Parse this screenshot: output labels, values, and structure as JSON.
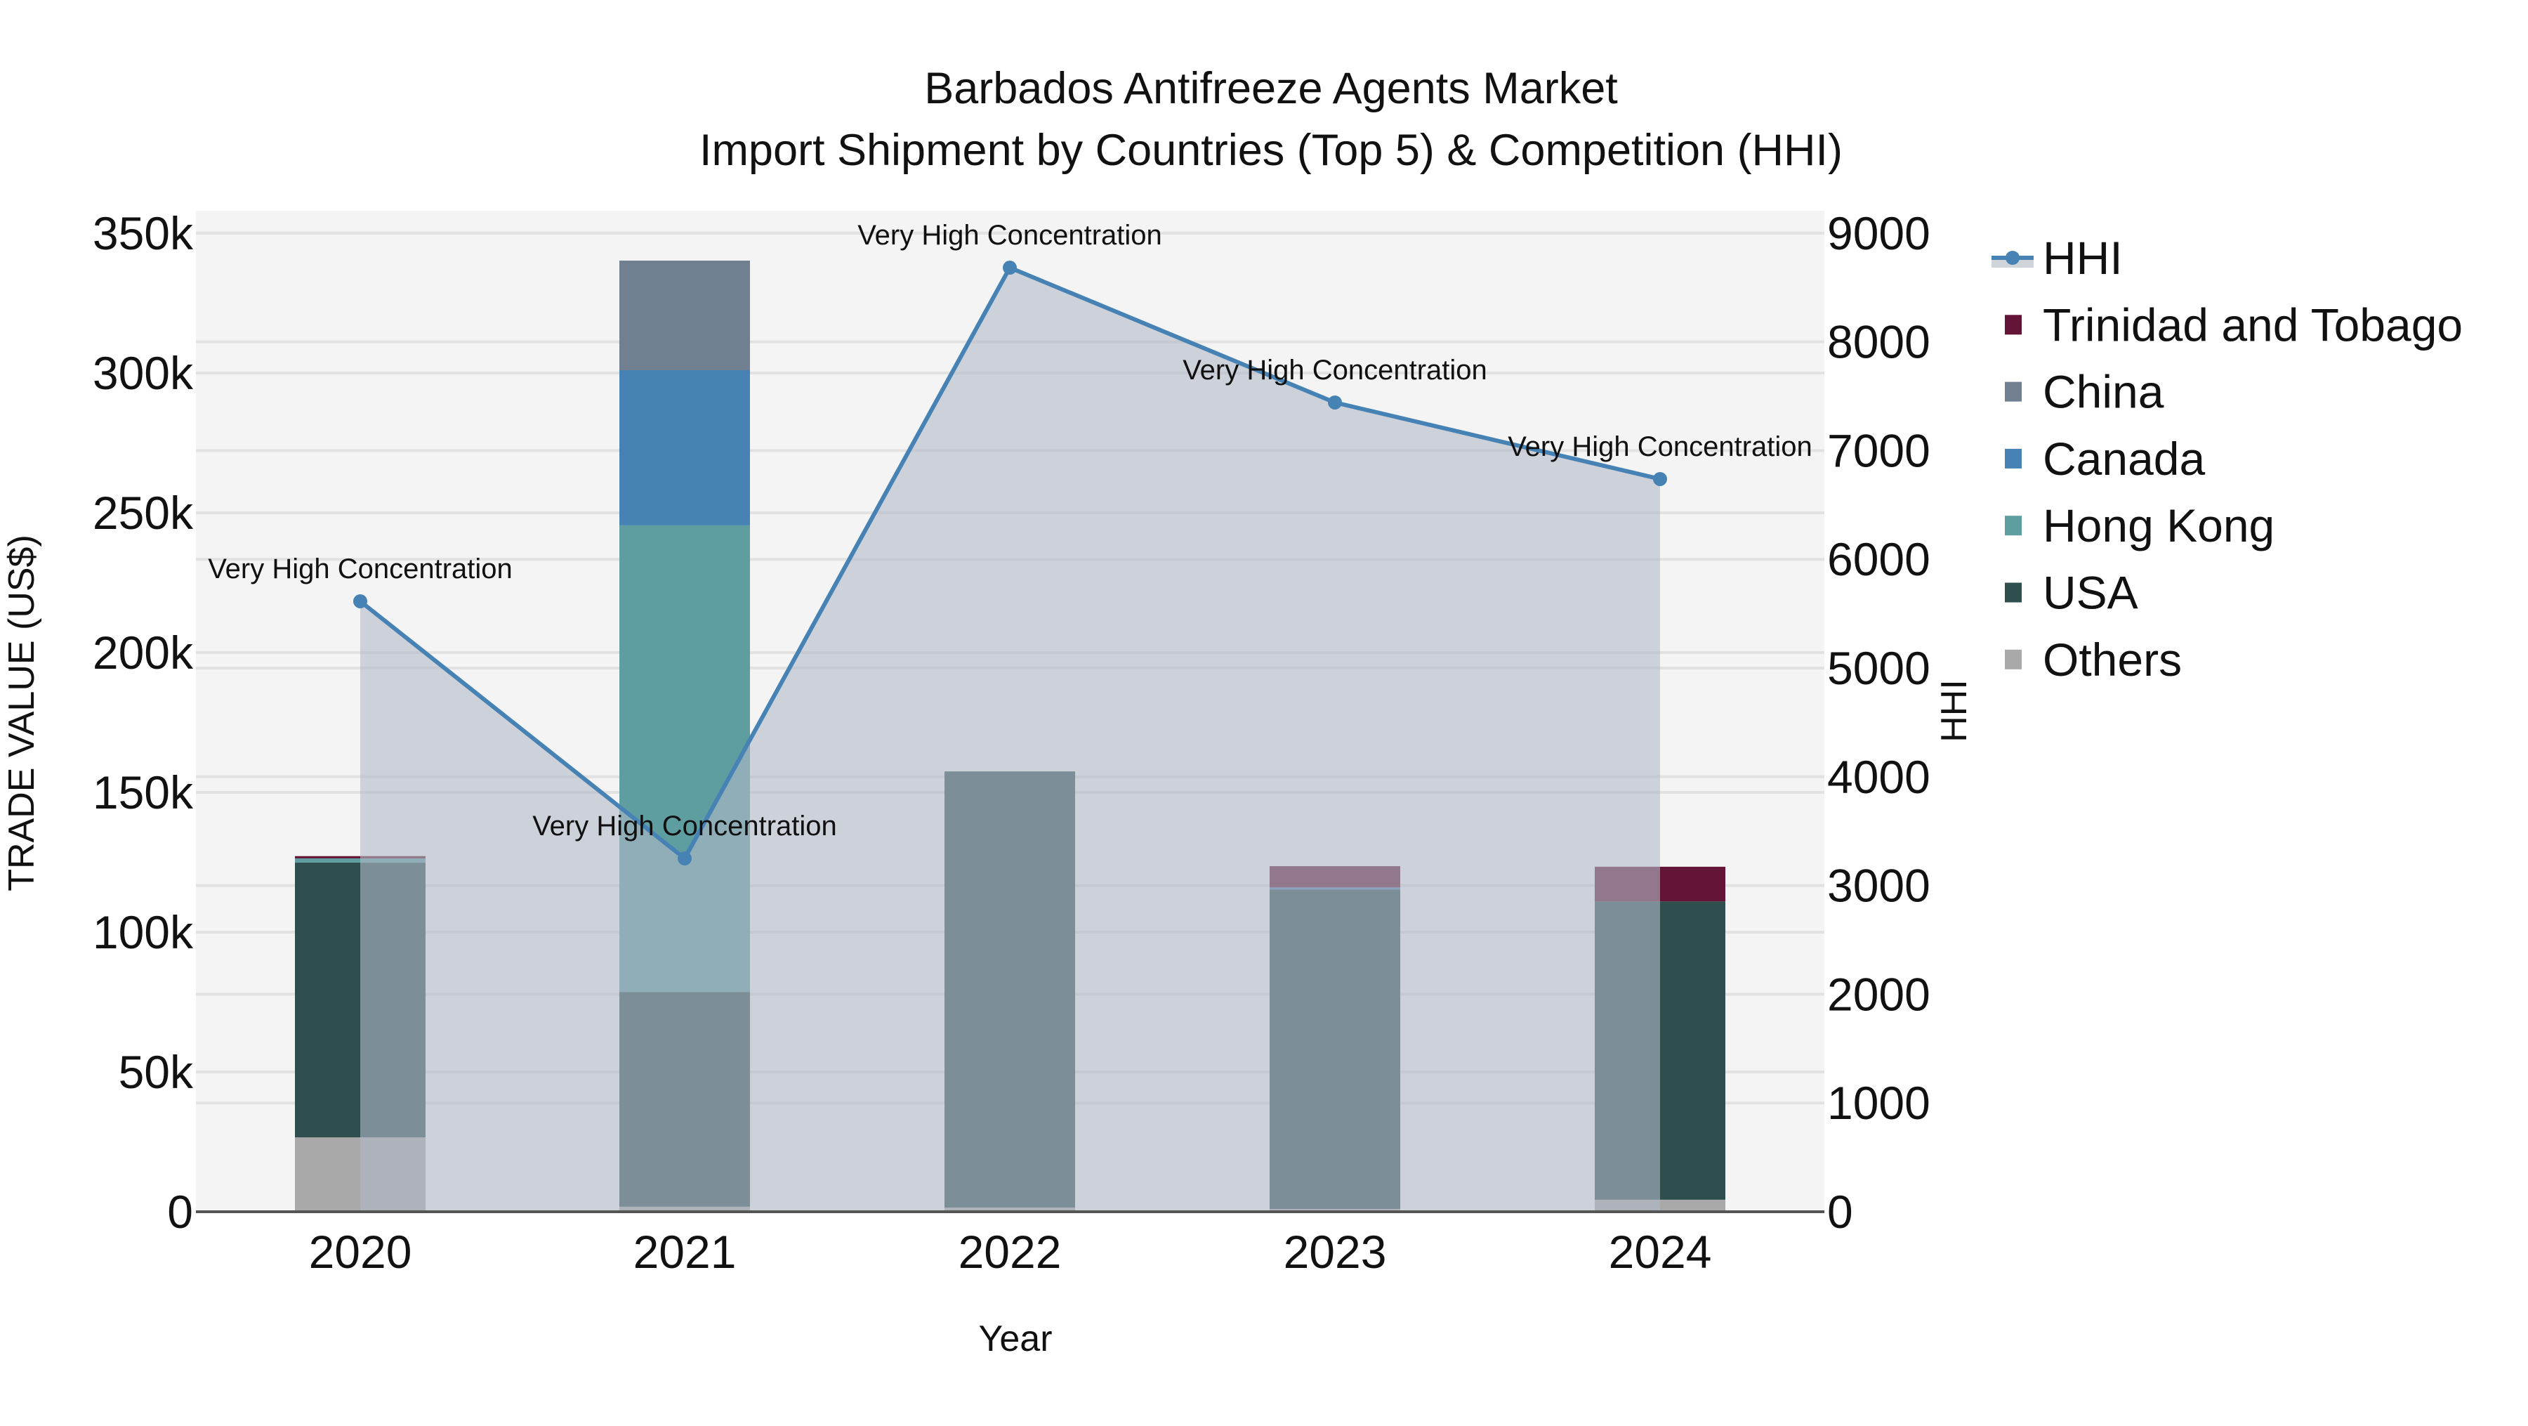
{
  "title": {
    "line1": "Barbados Antifreeze Agents Market",
    "line2": "Import Shipment by Countries (Top 5) & Competition (HHI)"
  },
  "axes": {
    "x_title": "Year",
    "y_left_title": "TRADE VALUE (US$)",
    "y_right_title": "HHI",
    "y_left_ticks": [
      "0",
      "50k",
      "100k",
      "150k",
      "200k",
      "250k",
      "300k",
      "350k"
    ],
    "y_right_ticks": [
      "0",
      "1000",
      "2000",
      "3000",
      "4000",
      "5000",
      "6000",
      "7000",
      "8000",
      "9000"
    ]
  },
  "legend": {
    "items": [
      {
        "label": "HHI",
        "type": "line",
        "color": "#4682b4"
      },
      {
        "label": "Trinidad and Tobago",
        "type": "box",
        "color": "#641436"
      },
      {
        "label": "China",
        "type": "box",
        "color": "#708090"
      },
      {
        "label": "Canada",
        "type": "box",
        "color": "#4682b4"
      },
      {
        "label": "Hong Kong",
        "type": "box",
        "color": "#5f9ea0"
      },
      {
        "label": "USA",
        "type": "box",
        "color": "#2f4f4f"
      },
      {
        "label": "Others",
        "type": "box",
        "color": "#a9a9a9"
      }
    ]
  },
  "annotations": {
    "label": "Very High Concentration"
  },
  "colors": {
    "plot_bg": "#f4f4f4",
    "grid": "#e2e2e2",
    "hhi_line": "#4682b4",
    "hhi_fill": "rgba(176,185,200,0.6)",
    "axis_line": "#555555"
  },
  "chart_data": {
    "type": "bar",
    "stacked": true,
    "title": "Barbados Antifreeze Agents Market\nImport Shipment by Countries (Top 5) & Competition (HHI)",
    "xlabel": "Year",
    "ylabel": "TRADE VALUE (US$)",
    "y2label": "HHI",
    "categories": [
      "2020",
      "2021",
      "2022",
      "2023",
      "2024"
    ],
    "ylim": [
      0,
      359000
    ],
    "y2lim": [
      0,
      9210
    ],
    "grid": true,
    "legend_position": "right",
    "series": [
      {
        "name": "Others",
        "color": "#a9a9a9",
        "values": [
          26600,
          1800,
          1500,
          1000,
          4300
        ]
      },
      {
        "name": "USA",
        "color": "#2f4f4f",
        "values": [
          98300,
          76800,
          156000,
          114300,
          106700
        ]
      },
      {
        "name": "Hong Kong",
        "color": "#5f9ea0",
        "values": [
          1500,
          166900,
          0,
          0,
          0
        ]
      },
      {
        "name": "Canada",
        "color": "#4682b4",
        "values": [
          0,
          55500,
          0,
          700,
          0
        ]
      },
      {
        "name": "China",
        "color": "#708090",
        "values": [
          0,
          39200,
          0,
          0,
          0
        ]
      },
      {
        "name": "Trinidad and Tobago",
        "color": "#641436",
        "values": [
          800,
          0,
          0,
          7600,
          12400
        ]
      }
    ],
    "line_series": {
      "name": "HHI",
      "axis": "right",
      "color": "#4682b4",
      "fill": "tozeroy",
      "values": [
        5614,
        3249,
        8682,
        7442,
        6738
      ],
      "annotations": [
        "Very High Concentration",
        "Very High Concentration",
        "Very High Concentration",
        "Very High Concentration",
        "Very High Concentration"
      ]
    }
  }
}
